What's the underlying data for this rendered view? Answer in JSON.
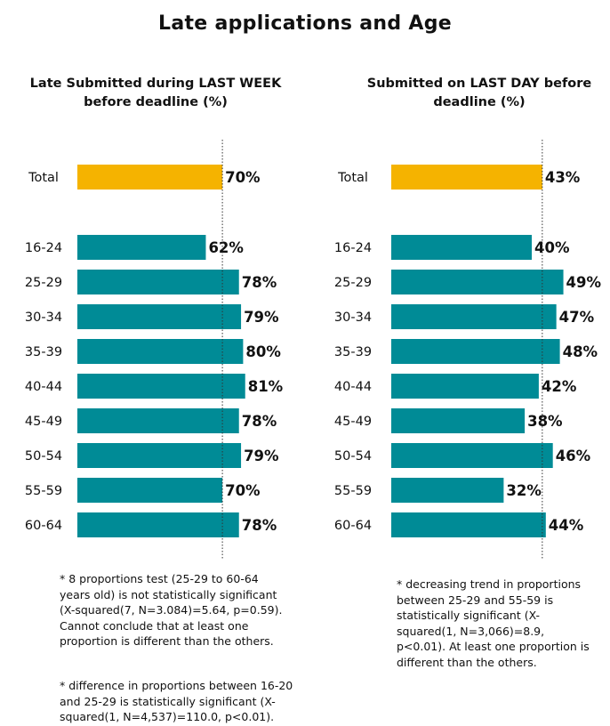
{
  "title": "Late applications and Age",
  "chart_data": [
    {
      "type": "bar",
      "orientation": "horizontal",
      "title": "Late Submitted during LAST WEEK before deadline (%)",
      "categories": [
        "Total",
        "16-24",
        "25-29",
        "30-34",
        "35-39",
        "40-44",
        "45-49",
        "50-54",
        "55-59",
        "60-64"
      ],
      "values": [
        70,
        62,
        78,
        79,
        80,
        81,
        78,
        79,
        70,
        78
      ],
      "value_labels": [
        "70%",
        "62%",
        "78%",
        "79%",
        "80%",
        "81%",
        "78%",
        "79%",
        "70%",
        "78%"
      ],
      "reference_line": 70,
      "colors": {
        "total": "#F5B300",
        "group": "#008B96",
        "reference": "#333333"
      }
    },
    {
      "type": "bar",
      "orientation": "horizontal",
      "title": "Submitted on LAST DAY before deadline (%)",
      "categories": [
        "Total",
        "16-24",
        "25-29",
        "30-34",
        "35-39",
        "40-44",
        "45-49",
        "50-54",
        "55-59",
        "60-64"
      ],
      "values": [
        43,
        40,
        49,
        47,
        48,
        42,
        38,
        46,
        32,
        44
      ],
      "value_labels": [
        "43%",
        "40%",
        "49%",
        "47%",
        "48%",
        "42%",
        "38%",
        "46%",
        "32%",
        "44%"
      ],
      "reference_line": 43,
      "colors": {
        "total": "#F5B300",
        "group": "#008B96",
        "reference": "#333333"
      }
    }
  ],
  "notes": [
    "* 8 proportions test (25-29 to 60-64 years old) is not statistically significant (X-squared(7, N=3.084)=5.64, p=0.59). Cannot conclude that at least one proportion is different than the others.",
    "* difference in proportions between 16-20 and 25-29 is statistically significant (X-squared(1, N=4,537)=110.0, p<0.01).",
    "* decreasing trend in proportions between 25-29 and 55-59 is statistically significant (X-squared(1, N=3,066)=8.9, p<0.01). At least one proportion is different than the others."
  ]
}
